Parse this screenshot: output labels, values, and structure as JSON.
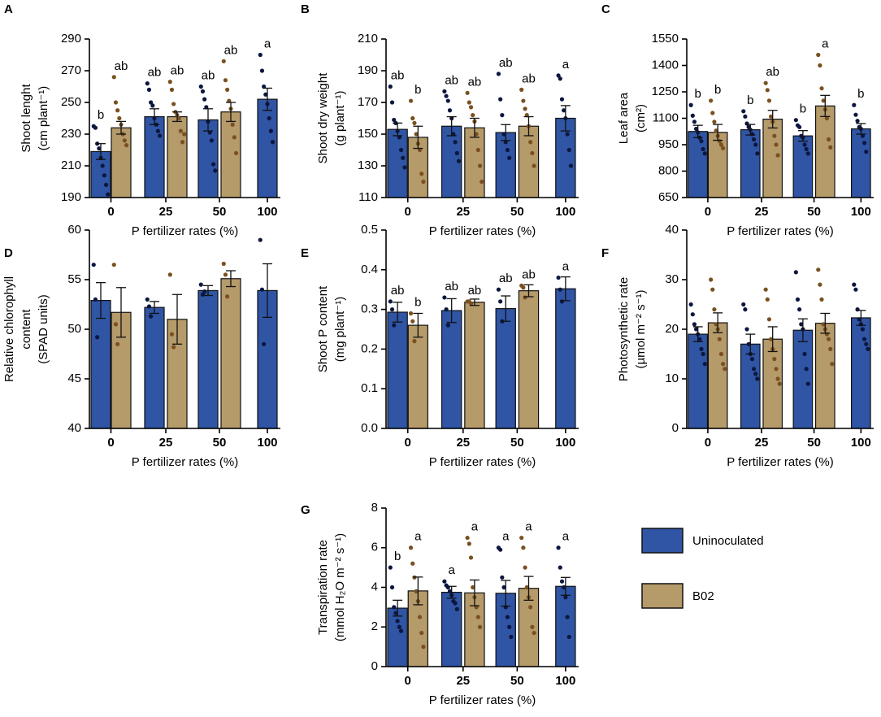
{
  "chart_data": [
    {
      "type": "bar",
      "panel": "A",
      "ylabel": [
        "Shoot lenght",
        "(cm plant⁻¹)"
      ],
      "xlabel": "P fertilizer rates (%)",
      "categories": [
        "0",
        "25",
        "50",
        "100"
      ],
      "ylim": [
        190,
        290
      ],
      "yticks": [
        190,
        210,
        230,
        250,
        270,
        290
      ],
      "series": [
        {
          "name": "Uninoculated",
          "color": "#2f55a4",
          "point_color": "#0d1640",
          "values": [
            219,
            241,
            239,
            252
          ],
          "errors": [
            5,
            5,
            7,
            7
          ],
          "labels": [
            "b",
            "ab",
            "ab",
            "a"
          ],
          "points": [
            [
              235,
              234,
              224,
              221,
              215,
              210,
              204,
              198,
              192
            ],
            [
              262,
              258,
              250,
              248,
              240,
              236,
              232,
              229
            ],
            [
              260,
              257,
              252,
              247,
              238,
              231,
              226,
              211,
              207
            ],
            [
              280,
              270,
              260,
              255,
              249,
              240,
              232,
              225
            ]
          ]
        },
        {
          "name": "B02",
          "color": "#b59a6a",
          "point_color": "#7a5020",
          "values": [
            234,
            241,
            244,
            null
          ],
          "errors": [
            4,
            3,
            6,
            null
          ],
          "labels": [
            "ab",
            "ab",
            "ab",
            null
          ],
          "points": [
            [
              266,
              250,
              245,
              240,
              236,
              230,
              226,
              223
            ],
            [
              263,
              258,
              249,
              244,
              242,
              240,
              232,
              225,
              230
            ],
            [
              276,
              264,
              258,
              251,
              246,
              236,
              228,
              218
            ],
            null
          ]
        }
      ]
    },
    {
      "type": "bar",
      "panel": "B",
      "ylabel": [
        "Shoot dry weight",
        "(g plant⁻¹)"
      ],
      "xlabel": "P fertilizer rates (%)",
      "categories": [
        "0",
        "25",
        "50",
        "100"
      ],
      "ylim": [
        110,
        210
      ],
      "yticks": [
        110,
        130,
        150,
        170,
        190,
        210
      ],
      "series": [
        {
          "name": "Uninoculated",
          "color": "#2f55a4",
          "point_color": "#0d1640",
          "values": [
            153,
            155,
            151,
            160
          ],
          "errors": [
            4,
            6,
            5,
            8
          ],
          "labels": [
            "ab",
            "ab",
            "ab",
            "a"
          ],
          "points": [
            [
              180,
              170,
              159,
              157,
              152,
              148,
              140,
              135,
              129
            ],
            [
              177,
              174,
              171,
              165,
              160,
              150,
              145,
              138,
              133
            ],
            [
              188,
              172,
              162,
              150,
              145,
              140,
              135
            ],
            [
              187,
              185,
              172,
              165,
              160,
              150,
              140,
              130
            ]
          ]
        },
        {
          "name": "B02",
          "color": "#b59a6a",
          "point_color": "#7a5020",
          "values": [
            148,
            154,
            155,
            null
          ],
          "errors": [
            7,
            6,
            6,
            null
          ],
          "labels": [
            "b",
            "ab",
            "ab",
            null
          ],
          "points": [
            [
              171,
              160,
              157,
              150,
              144,
              140,
              125,
              120
            ],
            [
              176,
              170,
              167,
              162,
              158,
              150,
              140,
              130,
              120
            ],
            [
              178,
              171,
              166,
              162,
              155,
              145,
              138,
              130
            ],
            null
          ]
        }
      ]
    },
    {
      "type": "bar",
      "panel": "C",
      "ylabel": [
        "Leaf area",
        "(cm²)"
      ],
      "xlabel": "P fertilizer rates (%)",
      "categories": [
        "0",
        "25",
        "50",
        "100"
      ],
      "ylim": [
        650,
        1550
      ],
      "yticks": [
        650,
        800,
        950,
        1100,
        1250,
        1400,
        1550
      ],
      "series": [
        {
          "name": "Uninoculated",
          "color": "#2f55a4",
          "point_color": "#0d1640",
          "values": [
            1025,
            1035,
            1000,
            1040
          ],
          "errors": [
            35,
            30,
            30,
            30
          ],
          "labels": [
            "b",
            "b",
            "b",
            "b"
          ],
          "points": [
            [
              1175,
              1115,
              1080,
              1040,
              1020,
              990,
              970,
              925,
              900
            ],
            [
              1140,
              1110,
              1070,
              1050,
              1035,
              1010,
              980,
              950,
              900
            ],
            [
              1090,
              1060,
              1050,
              1000,
              990,
              950,
              925,
              900
            ],
            [
              1175,
              1120,
              1085,
              1050,
              1040,
              1000,
              960,
              910
            ]
          ]
        },
        {
          "name": "B02",
          "color": "#b59a6a",
          "point_color": "#7a5020",
          "values": [
            1020,
            1095,
            1170,
            null
          ],
          "errors": [
            45,
            50,
            60,
            null
          ],
          "labels": [
            "b",
            "ab",
            "a",
            null
          ],
          "points": [
            [
              1200,
              1130,
              1080,
              1030,
              1000,
              970,
              950,
              930
            ],
            [
              1300,
              1260,
              1200,
              1110,
              1080,
              1000,
              950,
              890
            ],
            [
              1460,
              1400,
              1270,
              1200,
              1150,
              1100,
              980,
              935
            ],
            null
          ]
        }
      ]
    },
    {
      "type": "bar",
      "panel": "D",
      "ylabel": [
        "Relative chlorophyll",
        "content",
        "(SPAD units)"
      ],
      "xlabel": "P fertilizer rates (%)",
      "categories": [
        "0",
        "25",
        "50",
        "100"
      ],
      "ylim": [
        40,
        60
      ],
      "yticks": [
        40,
        45,
        50,
        55,
        60
      ],
      "series": [
        {
          "name": "Uninoculated",
          "color": "#2f55a4",
          "point_color": "#0d1640",
          "values": [
            52.9,
            52.2,
            53.9,
            53.9
          ],
          "errors": [
            1.8,
            0.6,
            0.5,
            2.7
          ],
          "points": [
            [
              56.5,
              53,
              49.2
            ],
            [
              53,
              52.3,
              51.3
            ],
            [
              54.5,
              53.5,
              53.8
            ],
            [
              59,
              54,
              48.5
            ]
          ]
        },
        {
          "name": "B02",
          "color": "#b59a6a",
          "point_color": "#7a5020",
          "values": [
            51.7,
            51.0,
            55.1,
            null
          ],
          "errors": [
            2.5,
            2.5,
            0.8,
            null
          ],
          "points": [
            [
              56.5,
              50.5,
              48.5
            ],
            [
              55.5,
              49.5,
              48.2
            ],
            [
              56.6,
              55.5,
              53.3
            ],
            null
          ]
        }
      ]
    },
    {
      "type": "bar",
      "panel": "E",
      "ylabel": [
        "Shoot P content",
        "(mg plant⁻¹)"
      ],
      "xlabel": "P fertilizer rates (%)",
      "categories": [
        "0",
        "25",
        "50",
        "100"
      ],
      "ylim": [
        0,
        0.5
      ],
      "yticks": [
        {
          "value": 0,
          "label": "0.0"
        },
        0.1,
        0.2,
        0.3,
        0.4,
        0.5
      ],
      "series": [
        {
          "name": "Uninoculated",
          "color": "#2f55a4",
          "point_color": "#0d1640",
          "values": [
            0.293,
            0.297,
            0.302,
            0.352
          ],
          "errors": [
            0.025,
            0.03,
            0.032,
            0.03
          ],
          "labels": [
            "ab",
            "ab",
            "ab",
            "a"
          ],
          "points": [
            [
              0.32,
              0.3,
              0.26
            ],
            [
              0.33,
              0.3,
              0.26
            ],
            [
              0.35,
              0.32,
              0.27
            ],
            [
              0.38,
              0.35,
              0.32
            ]
          ]
        },
        {
          "name": "B02",
          "color": "#b59a6a",
          "point_color": "#7a5020",
          "values": [
            0.26,
            0.318,
            0.347,
            null
          ],
          "errors": [
            0.03,
            0.008,
            0.015,
            null
          ],
          "labels": [
            "b",
            "ab",
            "ab",
            null
          ],
          "points": [
            [
              0.29,
              0.27,
              0.22
            ],
            [
              0.32,
              0.32,
              0.315
            ],
            [
              0.36,
              0.355,
              0.33
            ],
            null
          ]
        }
      ]
    },
    {
      "type": "bar",
      "panel": "F",
      "ylabel": [
        "Photosynthetic rate",
        "(µmol m⁻² s⁻¹)"
      ],
      "xlabel": "P fertilizer rates (%)",
      "categories": [
        "0",
        "25",
        "50",
        "100"
      ],
      "ylim": [
        0,
        40
      ],
      "yticks": [
        0,
        10,
        20,
        30,
        40
      ],
      "series": [
        {
          "name": "Uninoculated",
          "color": "#2f55a4",
          "point_color": "#0d1640",
          "values": [
            19,
            17,
            19.8,
            22.3
          ],
          "errors": [
            1.5,
            2,
            2.3,
            1.5
          ],
          "points": [
            [
              25,
              23,
              21,
              20,
              19,
              18,
              16,
              15,
              13
            ],
            [
              25,
              24,
              20,
              17,
              15,
              14,
              12,
              11,
              10
            ],
            [
              31.5,
              26,
              24,
              21,
              20,
              15,
              12,
              9
            ],
            [
              29,
              28,
              24,
              22,
              21,
              20,
              18,
              17,
              16
            ]
          ]
        },
        {
          "name": "B02",
          "color": "#b59a6a",
          "point_color": "#7a5020",
          "values": [
            21.3,
            18,
            21.2,
            null
          ],
          "errors": [
            2,
            2.5,
            2,
            null
          ],
          "points": [
            [
              30,
              28,
              24,
              21,
              20,
              18,
              15,
              13,
              12
            ],
            [
              28,
              26,
              22,
              18,
              16,
              14,
              12,
              10,
              9
            ],
            [
              32,
              29,
              26,
              21,
              20,
              19,
              18,
              16,
              13
            ],
            null
          ]
        }
      ]
    },
    {
      "type": "bar",
      "panel": "G",
      "ylabel": [
        "Transpiration rate",
        "(mmol H₂O m⁻² s⁻¹)"
      ],
      "xlabel": "P fertilizer rates (%)",
      "categories": [
        "0",
        "25",
        "50",
        "100"
      ],
      "ylim": [
        0,
        8
      ],
      "yticks": [
        0,
        2,
        4,
        6,
        8
      ],
      "series": [
        {
          "name": "Uninoculated",
          "color": "#2f55a4",
          "point_color": "#0d1640",
          "values": [
            2.95,
            3.75,
            3.7,
            4.05
          ],
          "errors": [
            0.4,
            0.3,
            0.65,
            0.45
          ],
          "labels": [
            "b",
            "a",
            "a",
            "a"
          ],
          "points": [
            [
              5,
              4,
              3,
              2.7,
              2.3,
              2,
              1.8
            ],
            [
              4.3,
              4.1,
              4,
              3.8,
              3.6,
              3.3,
              3.2,
              2.9
            ],
            [
              6,
              5.9,
              4.5,
              4,
              3,
              2.5,
              2,
              1.5
            ],
            [
              6,
              5,
              4.3,
              4,
              3.5,
              2.5,
              1.5
            ]
          ]
        },
        {
          "name": "B02",
          "color": "#b59a6a",
          "point_color": "#7a5020",
          "values": [
            3.82,
            3.72,
            3.95,
            null
          ],
          "errors": [
            0.7,
            0.65,
            0.6,
            null
          ],
          "labels": [
            "a",
            "a",
            "a",
            null
          ],
          "points": [
            [
              6,
              5.2,
              4.5,
              3.8,
              3.3,
              2.5,
              1.7,
              1
            ],
            [
              6.5,
              6.2,
              5.5,
              4,
              3.5,
              3,
              2.5,
              2
            ],
            [
              6.5,
              6,
              5,
              4,
              3.5,
              3,
              2,
              1.7
            ],
            null
          ]
        }
      ]
    }
  ]
}
